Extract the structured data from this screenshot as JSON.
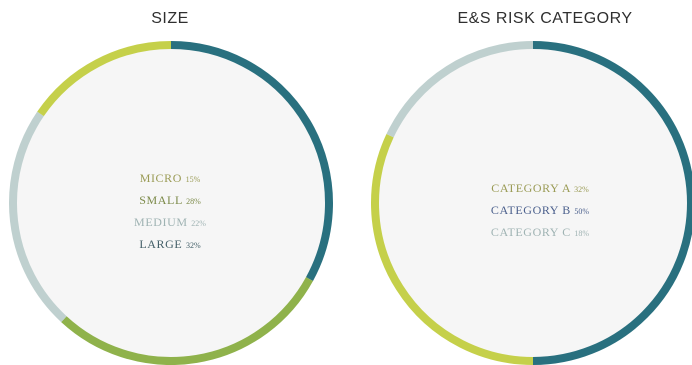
{
  "chart_data": [
    {
      "type": "donut",
      "title": "SIZE",
      "slices": [
        {
          "label": "MICRO",
          "pct_label": "15%",
          "value": 15,
          "color": "#c5d04a"
        },
        {
          "label": "SMALL",
          "pct_label": "28%",
          "value": 28,
          "color": "#8fb24b"
        },
        {
          "label": "MEDIUM",
          "pct_label": "22%",
          "value": 22,
          "color": "#bfd0cf"
        },
        {
          "label": "LARGE",
          "pct_label": "32%",
          "value": 32,
          "color": "#29707f"
        }
      ],
      "order_clockwise_from_top": [
        "LARGE",
        "SMALL",
        "MEDIUM",
        "MICRO"
      ],
      "legend_colors": [
        "#9a9b55",
        "#7c8a49",
        "#9fb3b3",
        "#425e67"
      ]
    },
    {
      "type": "donut",
      "title": "E&S RISK CATEGORY",
      "slices": [
        {
          "label": "CATEGORY A",
          "pct_label": "32%",
          "value": 32,
          "color": "#c5d04a"
        },
        {
          "label": "CATEGORY B",
          "pct_label": "50%",
          "value": 50,
          "color": "#29707f"
        },
        {
          "label": "CATEGORY C",
          "pct_label": "18%",
          "value": 18,
          "color": "#bfd0cf"
        }
      ],
      "order_clockwise_from_top": [
        "CATEGORY B",
        "CATEGORY A",
        "CATEGORY C"
      ],
      "legend_colors": [
        "#9a9b55",
        "#4a5f8c",
        "#9fb3b3"
      ]
    }
  ]
}
